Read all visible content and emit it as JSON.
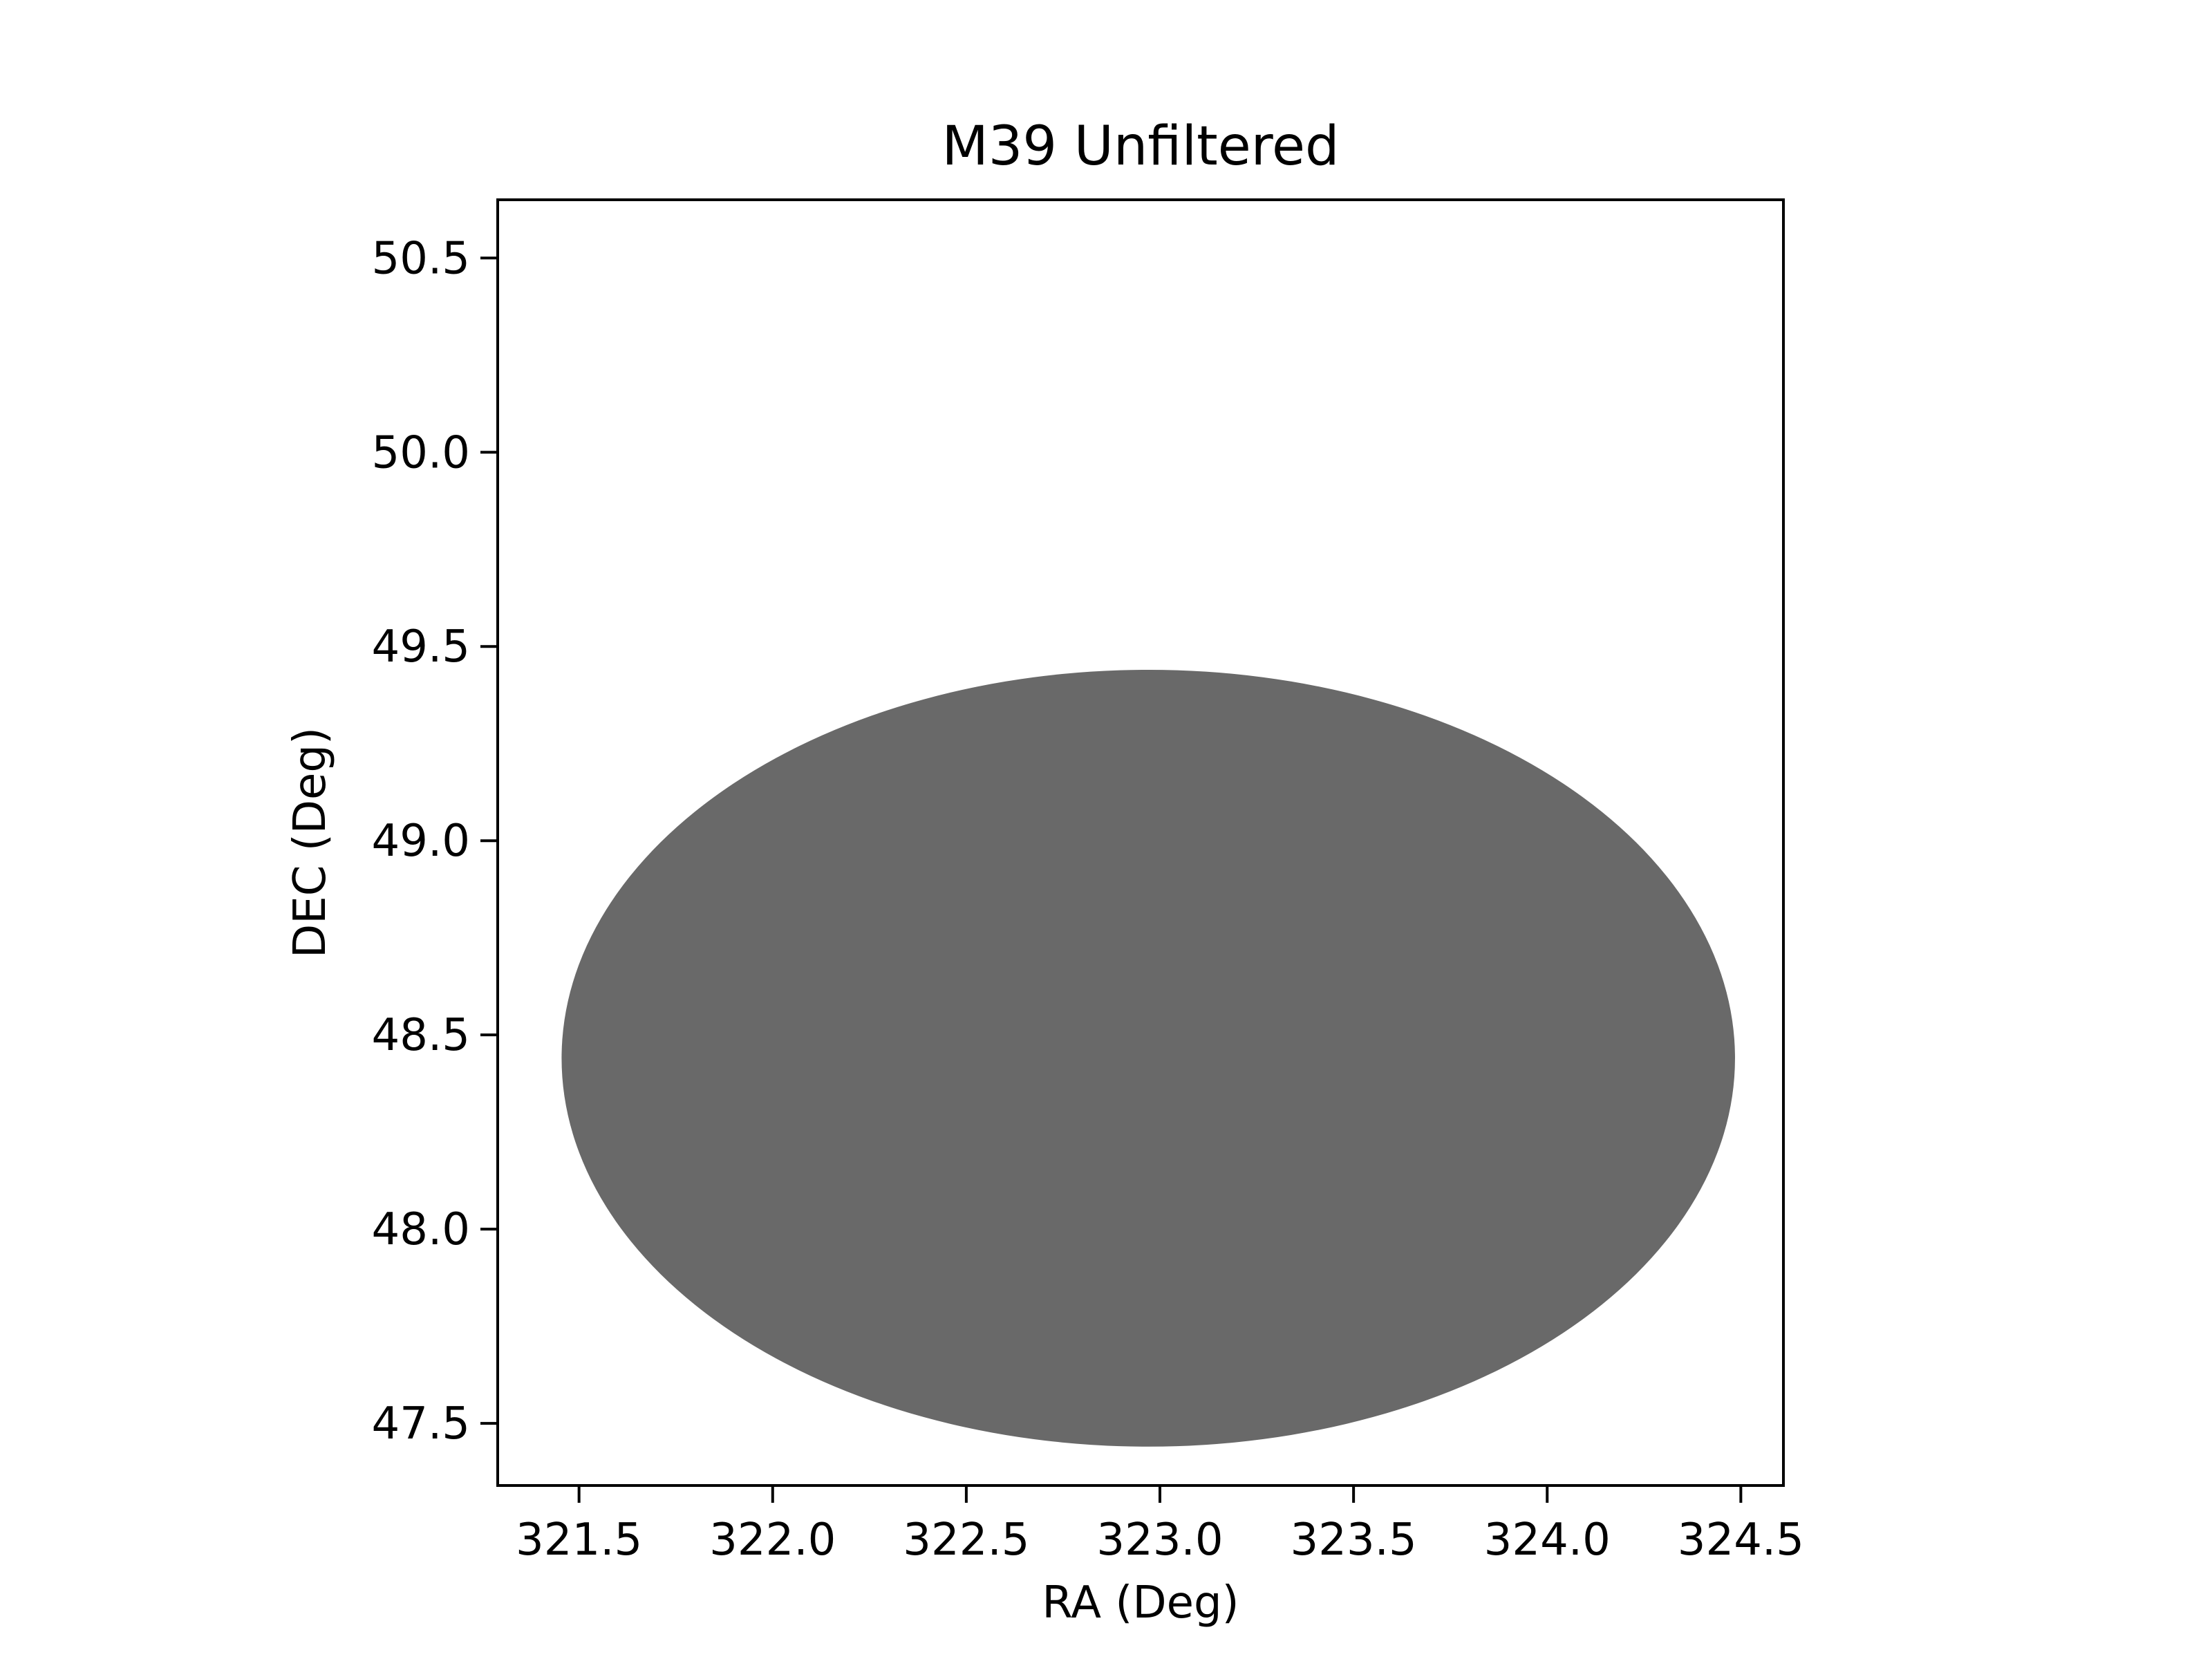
{
  "chart_data": {
    "type": "scatter",
    "title": "M39 Unfiltered",
    "xlabel": "RA (Deg)",
    "ylabel": "DEC (Deg)",
    "xlim": [
      321.29,
      324.61
    ],
    "ylim": [
      47.34,
      50.65
    ],
    "xticks": [
      321.5,
      322.0,
      322.5,
      323.0,
      323.5,
      324.0,
      324.5
    ],
    "xtick_labels": [
      "321.5",
      "322.0",
      "322.5",
      "323.0",
      "323.5",
      "324.0",
      "324.5"
    ],
    "yticks": [
      47.5,
      48.0,
      48.5,
      49.0,
      49.5,
      50.0,
      50.5
    ],
    "ytick_labels": [
      "47.5",
      "48.0",
      "48.5",
      "49.0",
      "49.5",
      "50.0",
      "50.5"
    ],
    "grid": false,
    "legend": "none",
    "series": [
      {
        "marker_color": "#696969",
        "region": {
          "shape": "ellipse",
          "center_ra": 322.97,
          "center_dec": 48.44,
          "ra_radius": 1.515,
          "dec_radius": 1.0
        },
        "note_points": "dense field of stars filling the region"
      }
    ]
  }
}
